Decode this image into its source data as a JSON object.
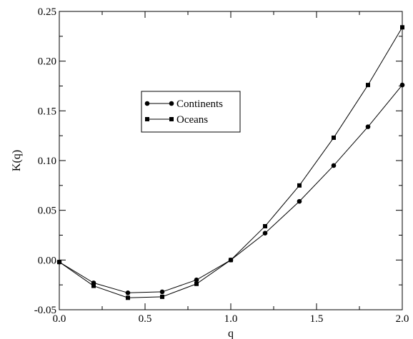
{
  "chart_data": {
    "type": "line",
    "xlabel": "q",
    "ylabel": "K(q)",
    "xlim": [
      0.0,
      2.0
    ],
    "ylim": [
      -0.05,
      0.25
    ],
    "x_ticks": [
      "0.0",
      "0.5",
      "1.0",
      "1.5",
      "2.0"
    ],
    "y_ticks": [
      "-0.05",
      "0.00",
      "0.05",
      "0.10",
      "0.15",
      "0.20",
      "0.25"
    ],
    "grid": false,
    "legend_position": "center-left",
    "series": [
      {
        "name": "Continents",
        "marker": "circle",
        "color": "#000000",
        "x": [
          0.0,
          0.2,
          0.4,
          0.6,
          0.8,
          1.0,
          1.2,
          1.4,
          1.6,
          1.8,
          2.0
        ],
        "y": [
          -0.002,
          -0.023,
          -0.033,
          -0.032,
          -0.02,
          0.0,
          0.027,
          0.059,
          0.095,
          0.134,
          0.176
        ]
      },
      {
        "name": "Oceans",
        "marker": "square",
        "color": "#000000",
        "x": [
          0.0,
          0.2,
          0.4,
          0.6,
          0.8,
          1.0,
          1.2,
          1.4,
          1.6,
          1.8,
          2.0
        ],
        "y": [
          -0.002,
          -0.026,
          -0.038,
          -0.037,
          -0.024,
          0.0,
          0.034,
          0.075,
          0.123,
          0.176,
          0.234
        ]
      }
    ]
  }
}
